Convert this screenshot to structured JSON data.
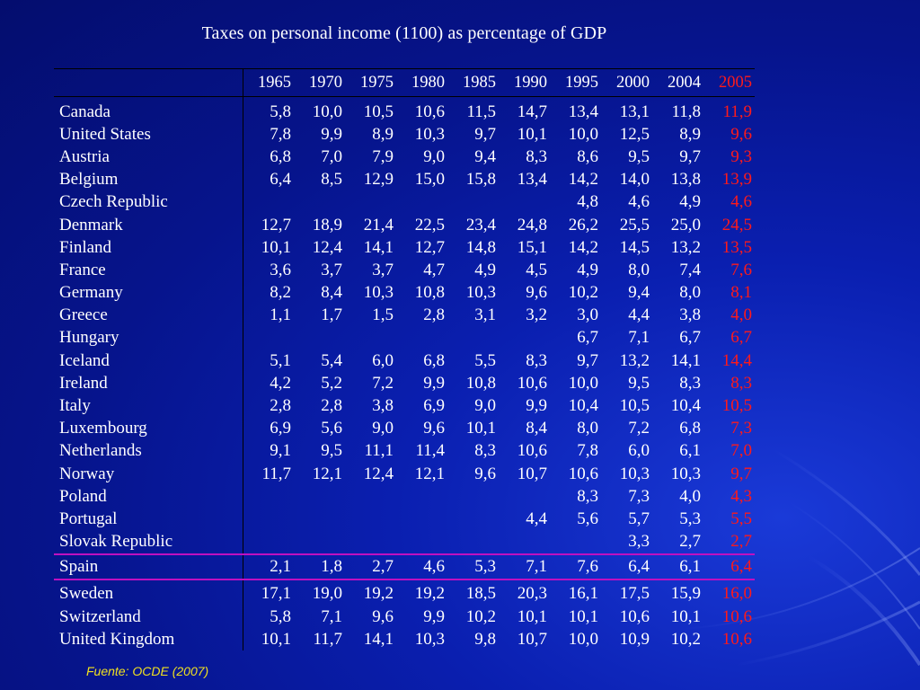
{
  "title": "Taxes on personal income (1100) as percentage of GDP",
  "source": "Fuente: OCDE (2007)",
  "colors": {
    "background": "#06148c",
    "text": "#ffffff",
    "highlight_year": "#ff1a1a",
    "highlight_row_border": "#c010c0",
    "source": "#f0e020"
  },
  "years": [
    "1965",
    "1970",
    "1975",
    "1980",
    "1985",
    "1990",
    "1995",
    "2000",
    "2004",
    "2005"
  ],
  "highlight_year": "2005",
  "highlight_row": "Spain",
  "rows": [
    {
      "country": "Canada",
      "values": [
        "5,8",
        "10,0",
        "10,5",
        "10,6",
        "11,5",
        "14,7",
        "13,4",
        "13,1",
        "11,8",
        "11,9"
      ]
    },
    {
      "country": "United States",
      "values": [
        "7,8",
        "9,9",
        "8,9",
        "10,3",
        "9,7",
        "10,1",
        "10,0",
        "12,5",
        "8,9",
        "9,6"
      ]
    },
    {
      "country": "Austria",
      "values": [
        "6,8",
        "7,0",
        "7,9",
        "9,0",
        "9,4",
        "8,3",
        "8,6",
        "9,5",
        "9,7",
        "9,3"
      ]
    },
    {
      "country": "Belgium",
      "values": [
        "6,4",
        "8,5",
        "12,9",
        "15,0",
        "15,8",
        "13,4",
        "14,2",
        "14,0",
        "13,8",
        "13,9"
      ]
    },
    {
      "country": "Czech Republic",
      "values": [
        "",
        "",
        "",
        "",
        "",
        "",
        "4,8",
        "4,6",
        "4,9",
        "4,6"
      ]
    },
    {
      "country": "Denmark",
      "values": [
        "12,7",
        "18,9",
        "21,4",
        "22,5",
        "23,4",
        "24,8",
        "26,2",
        "25,5",
        "25,0",
        "24,5"
      ]
    },
    {
      "country": "Finland",
      "values": [
        "10,1",
        "12,4",
        "14,1",
        "12,7",
        "14,8",
        "15,1",
        "14,2",
        "14,5",
        "13,2",
        "13,5"
      ]
    },
    {
      "country": "France",
      "values": [
        "3,6",
        "3,7",
        "3,7",
        "4,7",
        "4,9",
        "4,5",
        "4,9",
        "8,0",
        "7,4",
        "7,6"
      ]
    },
    {
      "country": "Germany",
      "values": [
        "8,2",
        "8,4",
        "10,3",
        "10,8",
        "10,3",
        "9,6",
        "10,2",
        "9,4",
        "8,0",
        "8,1"
      ]
    },
    {
      "country": "Greece",
      "values": [
        "1,1",
        "1,7",
        "1,5",
        "2,8",
        "3,1",
        "3,2",
        "3,0",
        "4,4",
        "3,8",
        "4,0"
      ]
    },
    {
      "country": "Hungary",
      "values": [
        "",
        "",
        "",
        "",
        "",
        "",
        "6,7",
        "7,1",
        "6,7",
        "6,7"
      ]
    },
    {
      "country": "Iceland",
      "values": [
        "5,1",
        "5,4",
        "6,0",
        "6,8",
        "5,5",
        "8,3",
        "9,7",
        "13,2",
        "14,1",
        "14,4"
      ]
    },
    {
      "country": "Ireland",
      "values": [
        "4,2",
        "5,2",
        "7,2",
        "9,9",
        "10,8",
        "10,6",
        "10,0",
        "9,5",
        "8,3",
        "8,3"
      ]
    },
    {
      "country": "Italy",
      "values": [
        "2,8",
        "2,8",
        "3,8",
        "6,9",
        "9,0",
        "9,9",
        "10,4",
        "10,5",
        "10,4",
        "10,5"
      ]
    },
    {
      "country": "Luxembourg",
      "values": [
        "6,9",
        "5,6",
        "9,0",
        "9,6",
        "10,1",
        "8,4",
        "8,0",
        "7,2",
        "6,8",
        "7,3"
      ]
    },
    {
      "country": "Netherlands",
      "values": [
        "9,1",
        "9,5",
        "11,1",
        "11,4",
        "8,3",
        "10,6",
        "7,8",
        "6,0",
        "6,1",
        "7,0"
      ]
    },
    {
      "country": "Norway",
      "values": [
        "11,7",
        "12,1",
        "12,4",
        "12,1",
        "9,6",
        "10,7",
        "10,6",
        "10,3",
        "10,3",
        "9,7"
      ]
    },
    {
      "country": "Poland",
      "values": [
        "",
        "",
        "",
        "",
        "",
        "",
        "8,3",
        "7,3",
        "4,0",
        "4,3"
      ]
    },
    {
      "country": "Portugal",
      "values": [
        "",
        "",
        "",
        "",
        "",
        "4,4",
        "5,6",
        "5,7",
        "5,3",
        "5,5"
      ]
    },
    {
      "country": "Slovak Republic",
      "values": [
        "",
        "",
        "",
        "",
        "",
        "",
        "",
        "3,3",
        "2,7",
        "2,7"
      ]
    },
    {
      "country": "Spain",
      "values": [
        "2,1",
        "1,8",
        "2,7",
        "4,6",
        "5,3",
        "7,1",
        "7,6",
        "6,4",
        "6,1",
        "6,4"
      ]
    },
    {
      "country": "Sweden",
      "values": [
        "17,1",
        "19,0",
        "19,2",
        "19,2",
        "18,5",
        "20,3",
        "16,1",
        "17,5",
        "15,9",
        "16,0"
      ]
    },
    {
      "country": "Switzerland",
      "values": [
        "5,8",
        "7,1",
        "9,6",
        "9,9",
        "10,2",
        "10,1",
        "10,1",
        "10,6",
        "10,1",
        "10,6"
      ]
    },
    {
      "country": "United Kingdom",
      "values": [
        "10,1",
        "11,7",
        "14,1",
        "10,3",
        "9,8",
        "10,7",
        "10,0",
        "10,9",
        "10,2",
        "10,6"
      ]
    }
  ]
}
